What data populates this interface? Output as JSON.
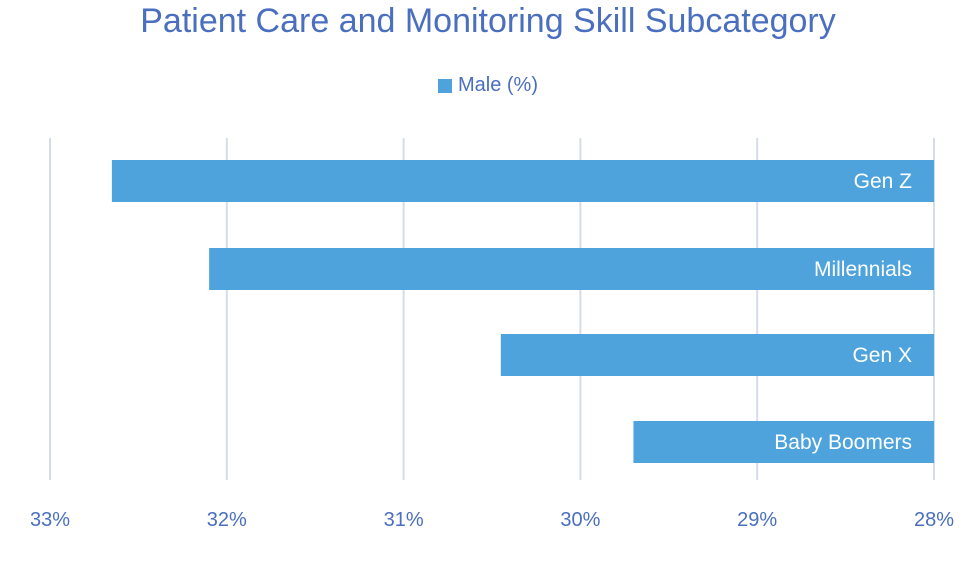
{
  "chart_data": {
    "type": "bar",
    "orientation": "horizontal",
    "title": "Patient Care and Monitoring Skill Subcategory",
    "x_axis_reversed": true,
    "xlim": [
      28,
      33
    ],
    "xticks": [
      "33%",
      "32%",
      "31%",
      "30%",
      "29%",
      "28%"
    ],
    "xtick_values": [
      33,
      32,
      31,
      30,
      29,
      28
    ],
    "categories": [
      "Gen Z",
      "Millennials",
      "Gen X",
      "Baby Boomers"
    ],
    "series": [
      {
        "name": "Male (%)",
        "values": [
          32.65,
          32.1,
          30.45,
          29.7
        ],
        "color": "#4fa3dc"
      }
    ],
    "grid": true,
    "legend_position": "top",
    "colors": {
      "title": "#4a6fbf",
      "tick": "#4a6fbf",
      "grid": "#d6dcec",
      "label": "#ffffff"
    }
  }
}
